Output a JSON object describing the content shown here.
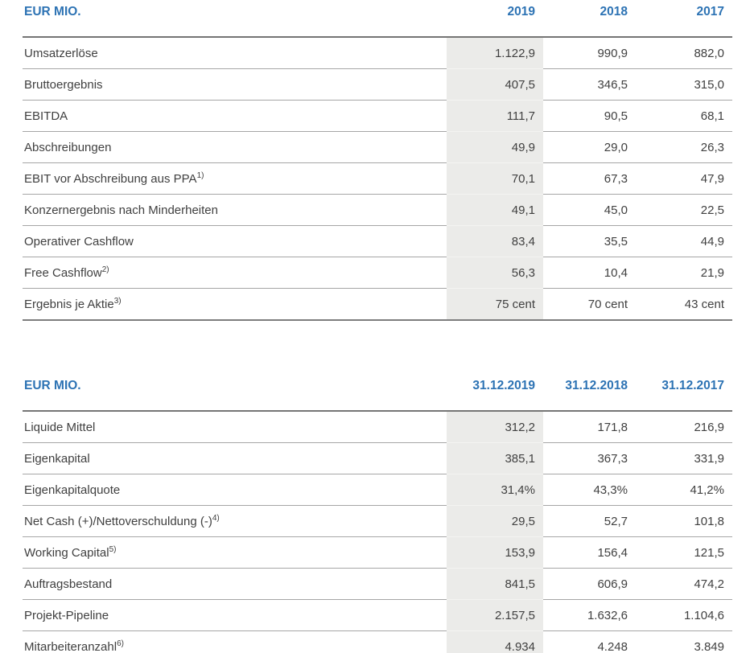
{
  "accent_color": "#2d73b4",
  "highlight_color": "#ebebe9",
  "text_color": "#404040",
  "tables": [
    {
      "title": "EUR MIO.",
      "columns": [
        "2019",
        "2018",
        "2017"
      ],
      "rows": [
        {
          "label": "Umsatzerlöse",
          "sup": "",
          "values": [
            "1.122,9",
            "990,9",
            "882,0"
          ]
        },
        {
          "label": "Bruttoergebnis",
          "sup": "",
          "values": [
            "407,5",
            "346,5",
            "315,0"
          ]
        },
        {
          "label": "EBITDA",
          "sup": "",
          "values": [
            "111,7",
            "90,5",
            "68,1"
          ]
        },
        {
          "label": "Abschreibungen",
          "sup": "",
          "values": [
            "49,9",
            "29,0",
            "26,3"
          ]
        },
        {
          "label": "EBIT vor Abschreibung aus PPA",
          "sup": "1)",
          "values": [
            "70,1",
            "67,3",
            "47,9"
          ]
        },
        {
          "label": "Konzernergebnis nach Minderheiten",
          "sup": "",
          "values": [
            "49,1",
            "45,0",
            "22,5"
          ]
        },
        {
          "label": "Operativer Cashflow",
          "sup": "",
          "values": [
            "83,4",
            "35,5",
            "44,9"
          ]
        },
        {
          "label": "Free Cashflow",
          "sup": "2)",
          "values": [
            "56,3",
            "10,4",
            "21,9"
          ]
        },
        {
          "label": "Ergebnis je Aktie",
          "sup": "3)",
          "values": [
            "75 cent",
            "70 cent",
            "43 cent"
          ]
        }
      ]
    },
    {
      "title": "EUR MIO.",
      "columns": [
        "31.12.2019",
        "31.12.2018",
        "31.12.2017"
      ],
      "rows": [
        {
          "label": "Liquide Mittel",
          "sup": "",
          "values": [
            "312,2",
            "171,8",
            "216,9"
          ]
        },
        {
          "label": "Eigenkapital",
          "sup": "",
          "values": [
            "385,1",
            "367,3",
            "331,9"
          ]
        },
        {
          "label": "Eigenkapitalquote",
          "sup": "",
          "values": [
            "31,4%",
            "43,3%",
            "41,2%"
          ]
        },
        {
          "label": "Net Cash (+)/Nettoverschuldung (-)",
          "sup": "4)",
          "values": [
            "29,5",
            "52,7",
            "101,8"
          ]
        },
        {
          "label": "Working Capital",
          "sup": "5)",
          "values": [
            "153,9",
            "156,4",
            "121,5"
          ]
        },
        {
          "label": "Auftragsbestand",
          "sup": "",
          "values": [
            "841,5",
            "606,9",
            "474,2"
          ]
        },
        {
          "label": "Projekt-Pipeline",
          "sup": "",
          "values": [
            "2.157,5",
            "1.632,6",
            "1.104,6"
          ]
        },
        {
          "label": "Mitarbeiteranzahl",
          "sup": "6)",
          "values": [
            "4.934",
            "4.248",
            "3.849"
          ]
        }
      ]
    }
  ]
}
